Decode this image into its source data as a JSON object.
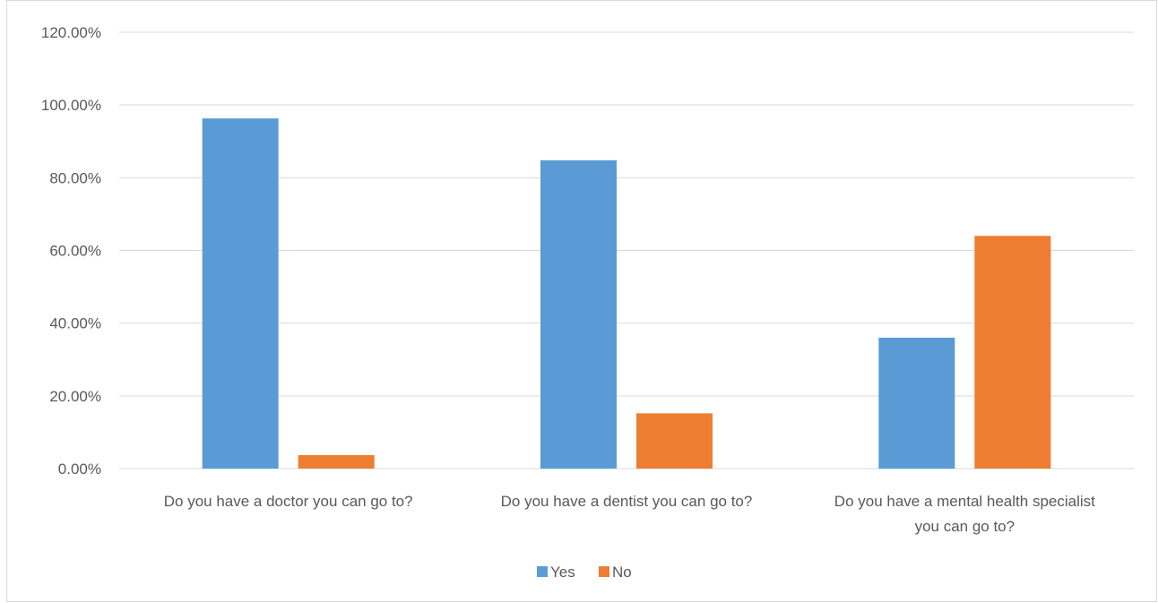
{
  "chart_data": {
    "type": "bar",
    "categories": [
      [
        "Do you have a doctor you can go to?"
      ],
      [
        "Do you have a dentist you can go to?"
      ],
      [
        "Do you have a mental health specialist",
        "you can go to?"
      ]
    ],
    "series": [
      {
        "name": "Yes",
        "color": "#5b9bd5",
        "values": [
          96.3,
          84.8,
          36.0
        ]
      },
      {
        "name": "No",
        "color": "#ed7d31",
        "values": [
          3.7,
          15.2,
          64.0
        ]
      }
    ],
    "ylim": [
      0,
      120
    ],
    "y_ticks": [
      "0.00%",
      "20.00%",
      "40.00%",
      "60.00%",
      "80.00%",
      "100.00%",
      "120.00%"
    ],
    "y_tick_values": [
      0,
      20,
      40,
      60,
      80,
      100,
      120
    ],
    "grid": true,
    "legend_position": "bottom",
    "title": "",
    "xlabel": "",
    "ylabel": "",
    "gridline_color": "#d9d9d9",
    "text_color": "#595959"
  }
}
